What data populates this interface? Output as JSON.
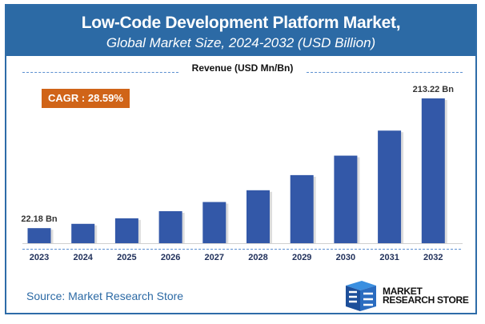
{
  "header": {
    "title": "Low-Code Development Platform Market,",
    "subtitle": "Global Market Size, 2024-2032 (USD Billion)"
  },
  "cagr_label": "CAGR : 28.59%",
  "source": "Source: Market Research Store",
  "logo": {
    "line1": "MARKET",
    "line2": "RESEARCH STORE"
  },
  "colors": {
    "bar": "#3358a8",
    "header": "#2c6aa5",
    "cagr": "#d06418"
  },
  "chart_data": {
    "type": "bar",
    "title": "Revenue (USD Mn/Bn)",
    "categories": [
      "2023",
      "2024",
      "2025",
      "2026",
      "2027",
      "2028",
      "2029",
      "2030",
      "2031",
      "2032"
    ],
    "values": [
      22.18,
      28.52,
      36.67,
      47.16,
      60.64,
      77.97,
      100.26,
      128.93,
      165.79,
      213.22
    ],
    "data_labels": {
      "0": "22.18 Bn",
      "9": "213.22 Bn"
    },
    "ylim": [
      0,
      213.22
    ],
    "grid": false
  }
}
